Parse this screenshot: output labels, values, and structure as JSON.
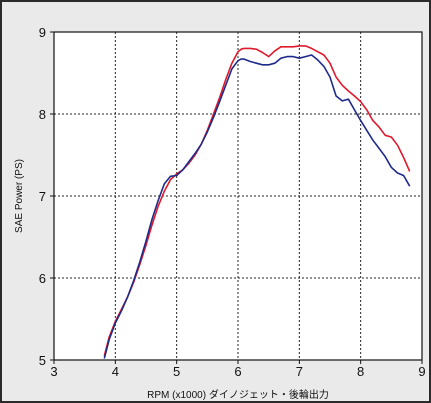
{
  "chart_data": {
    "type": "line",
    "title": "",
    "xlabel": "RPM (x1000) ダイノジェット・後輪出力",
    "ylabel": "SAE Power (PS)",
    "xlim": [
      3,
      9
    ],
    "ylim": [
      5,
      9
    ],
    "xticks": [
      3,
      4,
      5,
      6,
      7,
      8,
      9
    ],
    "yticks": [
      5,
      6,
      7,
      8,
      9
    ],
    "grid": true,
    "series": [
      {
        "color": "#e0192b",
        "x": [
          3.82,
          3.9,
          4.0,
          4.1,
          4.2,
          4.3,
          4.4,
          4.5,
          4.6,
          4.7,
          4.8,
          4.9,
          5.0,
          5.1,
          5.2,
          5.3,
          5.4,
          5.5,
          5.6,
          5.7,
          5.8,
          5.9,
          6.0,
          6.05,
          6.1,
          6.2,
          6.3,
          6.4,
          6.5,
          6.6,
          6.7,
          6.8,
          6.9,
          7.0,
          7.1,
          7.2,
          7.3,
          7.4,
          7.5,
          7.6,
          7.7,
          7.8,
          7.9,
          8.0,
          8.1,
          8.2,
          8.3,
          8.4,
          8.5,
          8.6,
          8.7,
          8.8
        ],
        "y": [
          5.05,
          5.28,
          5.47,
          5.62,
          5.77,
          5.95,
          6.17,
          6.4,
          6.65,
          6.88,
          7.06,
          7.2,
          7.27,
          7.32,
          7.4,
          7.5,
          7.63,
          7.8,
          8.0,
          8.2,
          8.42,
          8.62,
          8.76,
          8.79,
          8.8,
          8.8,
          8.79,
          8.75,
          8.7,
          8.77,
          8.82,
          8.82,
          8.82,
          8.83,
          8.83,
          8.8,
          8.76,
          8.72,
          8.62,
          8.45,
          8.35,
          8.28,
          8.22,
          8.15,
          8.05,
          7.92,
          7.84,
          7.74,
          7.72,
          7.62,
          7.47,
          7.3
        ]
      },
      {
        "color": "#1e2b8a",
        "x": [
          3.82,
          3.9,
          4.0,
          4.1,
          4.2,
          4.3,
          4.4,
          4.5,
          4.6,
          4.7,
          4.8,
          4.9,
          5.0,
          5.1,
          5.2,
          5.3,
          5.4,
          5.5,
          5.6,
          5.7,
          5.8,
          5.9,
          6.0,
          6.05,
          6.1,
          6.2,
          6.3,
          6.4,
          6.5,
          6.6,
          6.7,
          6.8,
          6.9,
          7.0,
          7.1,
          7.2,
          7.3,
          7.4,
          7.5,
          7.6,
          7.7,
          7.8,
          7.9,
          8.0,
          8.1,
          8.2,
          8.3,
          8.4,
          8.5,
          8.6,
          8.7,
          8.8
        ],
        "y": [
          5.02,
          5.25,
          5.45,
          5.6,
          5.77,
          5.97,
          6.2,
          6.45,
          6.72,
          6.95,
          7.15,
          7.24,
          7.25,
          7.32,
          7.42,
          7.52,
          7.63,
          7.78,
          7.96,
          8.15,
          8.35,
          8.55,
          8.65,
          8.67,
          8.67,
          8.64,
          8.62,
          8.6,
          8.6,
          8.62,
          8.68,
          8.7,
          8.7,
          8.68,
          8.7,
          8.72,
          8.66,
          8.58,
          8.45,
          8.22,
          8.16,
          8.18,
          8.05,
          7.92,
          7.8,
          7.68,
          7.58,
          7.48,
          7.35,
          7.28,
          7.25,
          7.12
        ]
      }
    ]
  }
}
